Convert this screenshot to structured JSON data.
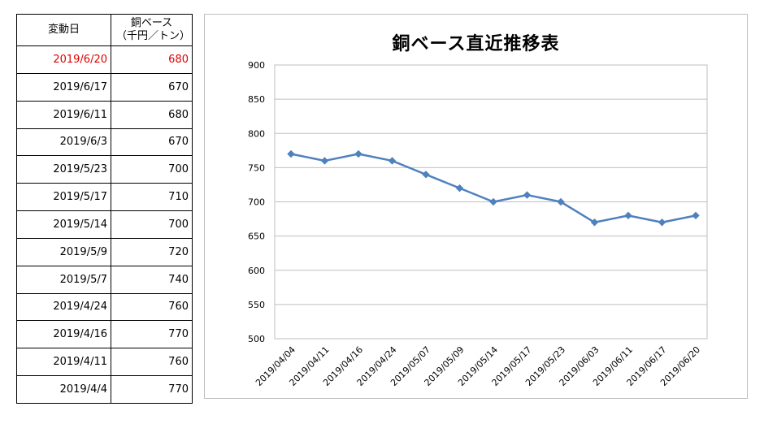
{
  "table": {
    "header_date": "変動日",
    "header_value_line1": "銅ベース",
    "header_value_line2": "（千円／トン）",
    "rows": [
      {
        "date": "2019/6/20",
        "value": "680"
      },
      {
        "date": "2019/6/17",
        "value": "670"
      },
      {
        "date": "2019/6/11",
        "value": "680"
      },
      {
        "date": "2019/6/3",
        "value": "670"
      },
      {
        "date": "2019/5/23",
        "value": "700"
      },
      {
        "date": "2019/5/17",
        "value": "710"
      },
      {
        "date": "2019/5/14",
        "value": "700"
      },
      {
        "date": "2019/5/9",
        "value": "720"
      },
      {
        "date": "2019/5/7",
        "value": "740"
      },
      {
        "date": "2019/4/24",
        "value": "760"
      },
      {
        "date": "2019/4/16",
        "value": "770"
      },
      {
        "date": "2019/4/11",
        "value": "760"
      },
      {
        "date": "2019/4/4",
        "value": "770"
      }
    ],
    "latest_color": "#e00000"
  },
  "chart_data": {
    "type": "line",
    "title": "銅ベース直近推移表",
    "xlabel": "",
    "ylabel": "",
    "categories": [
      "2019/04/04",
      "2019/04/11",
      "2019/04/16",
      "2019/04/24",
      "2019/05/07",
      "2019/05/09",
      "2019/05/14",
      "2019/05/17",
      "2019/05/23",
      "2019/06/03",
      "2019/06/11",
      "2019/06/17",
      "2019/06/20"
    ],
    "series": [
      {
        "values": [
          770,
          760,
          770,
          760,
          740,
          720,
          700,
          710,
          700,
          670,
          680,
          670,
          680
        ]
      }
    ],
    "ylim": [
      500,
      900
    ],
    "yticks": [
      500,
      550,
      600,
      650,
      700,
      750,
      800,
      850,
      900
    ],
    "grid": true,
    "line_color": "#4f81bd",
    "marker": "diamond",
    "legend": "none"
  }
}
